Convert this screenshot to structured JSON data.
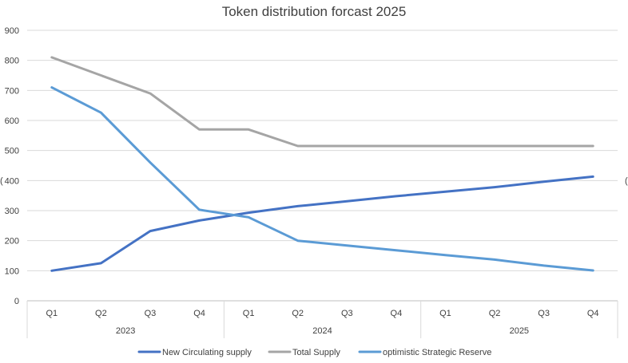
{
  "chart_data": {
    "type": "line",
    "title": "Token distribution forcast 2025",
    "xlabel": "",
    "ylabel": "",
    "ylim": [
      0,
      900
    ],
    "yticks": [
      0,
      100,
      200,
      300,
      400,
      500,
      600,
      700,
      800,
      900
    ],
    "grid": true,
    "legend_position": "bottom",
    "categories": [
      "Q1",
      "Q2",
      "Q3",
      "Q4",
      "Q1",
      "Q2",
      "Q3",
      "Q4",
      "Q1",
      "Q2",
      "Q3",
      "Q4"
    ],
    "groups": [
      {
        "label": "2023",
        "count": 4
      },
      {
        "label": "2024",
        "count": 4
      },
      {
        "label": "2025",
        "count": 4
      }
    ],
    "series": [
      {
        "name": "New Circulating supply",
        "color": "#4472C4",
        "values": [
          100,
          125,
          232,
          267,
          293,
          315,
          331,
          348,
          363,
          378,
          396,
          413
        ]
      },
      {
        "name": "Total Supply",
        "color": "#A5A5A5",
        "values": [
          810,
          750,
          690,
          570,
          570,
          515,
          515,
          515,
          515,
          515,
          515,
          515
        ]
      },
      {
        "name": "optimistic Strategic Reserve",
        "color": "#5B9BD5",
        "values": [
          710,
          626,
          460,
          303,
          278,
          200,
          184,
          168,
          152,
          137,
          117,
          101
        ]
      }
    ]
  },
  "edge_glyphs": {
    "left": "(",
    "right": "("
  }
}
